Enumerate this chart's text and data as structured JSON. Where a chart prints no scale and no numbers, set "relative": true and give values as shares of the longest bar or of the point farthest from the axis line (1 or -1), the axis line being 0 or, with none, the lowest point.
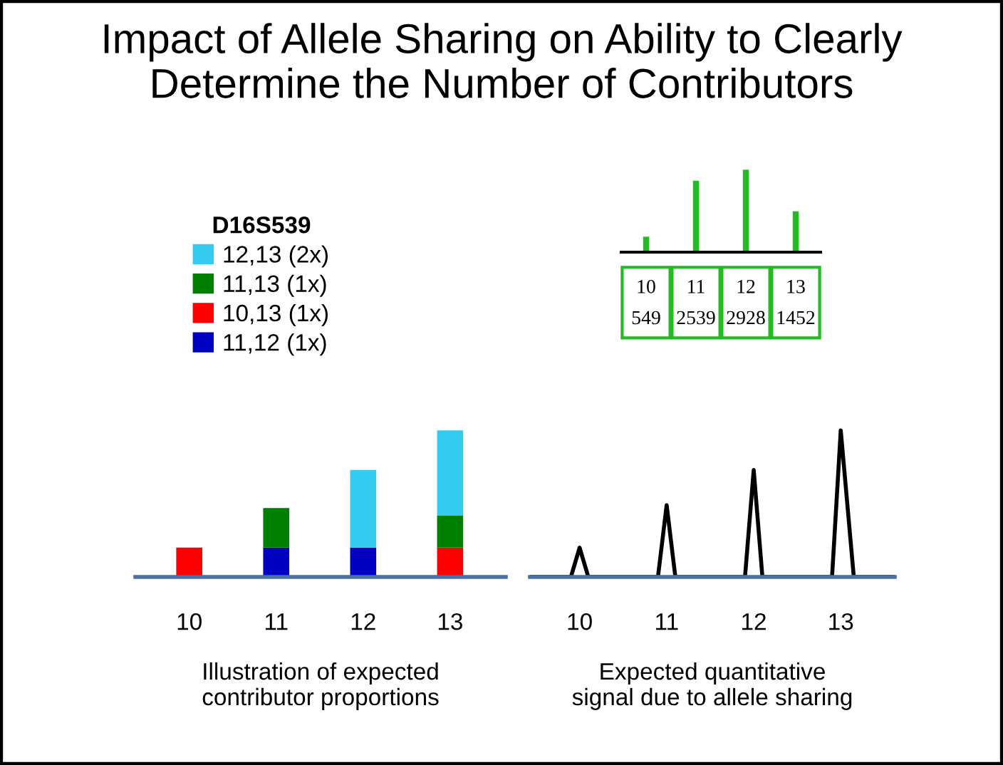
{
  "chart_data": [
    {
      "type": "bar",
      "title": "Impact of Allele Sharing on Ability to Clearly Determine the Number of Contributors",
      "xlabel": "Illustration of expected\ncontributor proportions",
      "categories": [
        "10",
        "11",
        "12",
        "13"
      ],
      "stacked": true,
      "relative": true,
      "legend": "top left",
      "legend_title": "D16S539",
      "grid": false,
      "series": [
        {
          "name": "11,12 (1x)",
          "color": "#0000c0",
          "values": [
            0,
            0.2,
            0.2,
            0
          ]
        },
        {
          "name": "10,13 (1x)",
          "color": "#ff0000",
          "values": [
            0.2,
            0,
            0,
            0.2
          ]
        },
        {
          "name": "11,13 (1x)",
          "color": "#008000",
          "values": [
            0,
            0.27,
            0,
            0.22
          ]
        },
        {
          "name": "12,13 (2x)",
          "color": "#33ccf0",
          "values": [
            0,
            0,
            0.53,
            0.58
          ]
        }
      ]
    },
    {
      "type": "line",
      "xlabel": "Expected quantitative\nsignal due to allele sharing",
      "relative": true,
      "grid": false,
      "xlim": [
        9.43,
        13.62
      ],
      "xticks": [
        10,
        11,
        12,
        13
      ],
      "marker": "none",
      "line_style": "solid",
      "series": [
        {
          "color": "#000000",
          "x": [
            9.43,
            9.9,
            10,
            10.1,
            10.9,
            11,
            11.1,
            11.9,
            12,
            12.1,
            12.9,
            13,
            13.15,
            13.62
          ],
          "values": [
            0,
            0,
            0.2,
            0,
            0,
            0.49,
            0,
            0,
            0.73,
            0,
            0,
            1,
            0,
            0
          ]
        }
      ]
    },
    {
      "type": "bar",
      "categories": [
        "10",
        "11",
        "12",
        "13"
      ],
      "values": [
        549,
        2539,
        2928,
        1452
      ],
      "color": "#22bb22",
      "data_labels": true,
      "grid": false
    }
  ]
}
